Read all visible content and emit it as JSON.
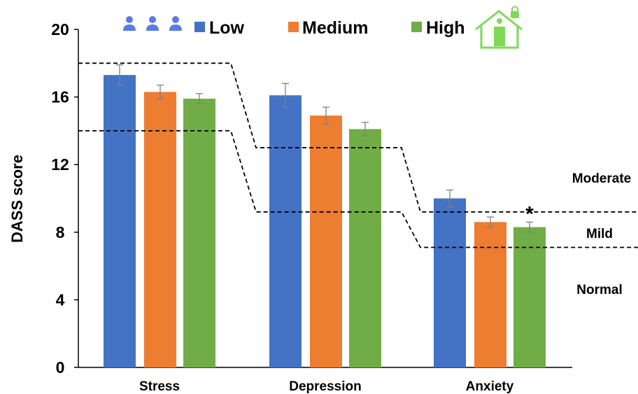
{
  "chart_data": {
    "type": "bar",
    "ylabel": "DASS score",
    "ylim": [
      0,
      20
    ],
    "yticks": [
      0,
      4,
      8,
      12,
      16,
      20
    ],
    "categories": [
      "Stress",
      "Depression",
      "Anxiety"
    ],
    "series": [
      {
        "name": "Low",
        "color": "#4472C4",
        "values": [
          17.3,
          16.1,
          10.0
        ],
        "errors": [
          0.6,
          0.7,
          0.5
        ]
      },
      {
        "name": "Medium",
        "color": "#ED7D31",
        "values": [
          16.3,
          14.9,
          8.6
        ],
        "errors": [
          0.4,
          0.5,
          0.3
        ]
      },
      {
        "name": "High",
        "color": "#70AD47",
        "values": [
          15.9,
          14.1,
          8.3
        ],
        "errors": [
          0.3,
          0.4,
          0.3
        ]
      }
    ],
    "thresholds": [
      {
        "name": "upper",
        "values": [
          18,
          13,
          9.2
        ]
      },
      {
        "name": "lower",
        "values": [
          14,
          9.2,
          7.1
        ]
      }
    ],
    "severity_labels": [
      "Moderate",
      "Mild",
      "Normal"
    ],
    "annotations": [
      {
        "text": "*",
        "category": "Anxiety",
        "series": "High"
      }
    ],
    "legend": {
      "position": "top",
      "icons": [
        "people-group-icon",
        "house-lock-person-icon"
      ]
    },
    "grid": false
  }
}
